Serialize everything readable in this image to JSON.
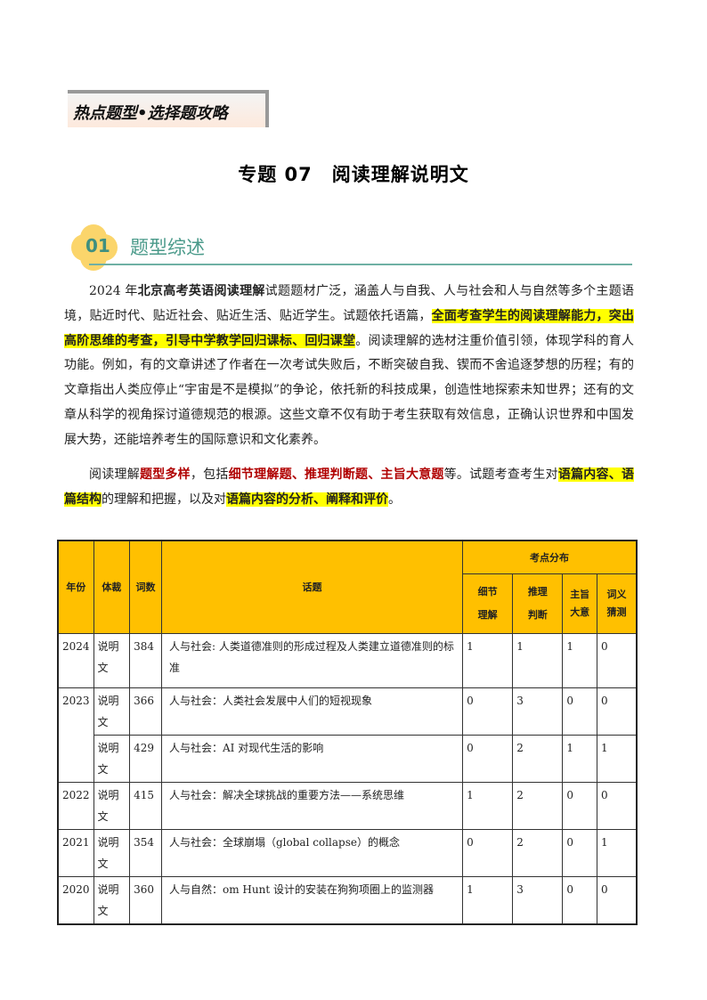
{
  "tag": "热点题型•选择题攻略",
  "title": "专题 07　阅读理解说明文",
  "section": {
    "number": "01",
    "title": "题型综述"
  },
  "paragraphs": [
    [
      [
        "",
        "2024 年"
      ],
      [
        "b",
        "北京高考英语阅读理解"
      ],
      [
        "",
        "试题题材广泛，涵盖人与自我、人与社会和人与自然等多个主题语境，贴近时代、贴近社会、贴近生活、贴近学生。试题依托语篇，"
      ],
      [
        "hl",
        "全面考查学生的阅读理解能力，突出高阶思维的考查，引导中学教学回归课标、回归课堂"
      ],
      [
        "",
        "。阅读理解的选材注重价值引领，体现学科的育人功能。例如，有的文章讲述了作者在一次考试失败后，不断突破自我、锲而不舍追逐梦想的历程；有的文章指出人类应停止“宇宙是不是模拟”的争论，依托新的科技成果，创造性地探索未知世界；还有的文章从科学的视角探讨道德规范的根源。这些文章不仅有助于考生获取有效信息，正确认识世界和中国发展大势，还能培养考生的国际意识和文化素养。"
      ]
    ],
    [
      [
        "",
        "阅读理解"
      ],
      [
        "red",
        "题型多样"
      ],
      [
        "",
        "，包括"
      ],
      [
        "red",
        "细节理解题、推理判断题、主旨大意题"
      ],
      [
        "",
        "等。试题考查考生对"
      ],
      [
        "hl",
        "语篇内容、语篇结构"
      ],
      [
        "",
        "的理解和把握，以及对"
      ],
      [
        "hl",
        "语篇内容的分析、阐释和评价"
      ],
      [
        "",
        "。"
      ]
    ]
  ],
  "table": {
    "headers": {
      "year": "年份",
      "genre": "体裁",
      "words": "词数",
      "topic": "话题",
      "group": "考点分布",
      "sub": [
        "细节\n理解",
        "推理\n判断",
        "主旨\n大意",
        "词义\n猜测"
      ]
    },
    "rows": [
      {
        "year": "2024",
        "genre": "说明文",
        "words": "384",
        "topic": "人与社会: 人类道德准则的形成过程及人类建立道德准则的标准",
        "v": [
          "1",
          "1",
          "1",
          "0"
        ]
      },
      {
        "year": "2023",
        "genre": "说明文",
        "words": "366",
        "topic": "人与社会：人类社会发展中人们的短视现象",
        "v": [
          "0",
          "3",
          "0",
          "0"
        ]
      },
      {
        "year": "",
        "genre": "说明文",
        "words": "429",
        "topic": "人与社会：AI 对现代生活的影响",
        "v": [
          "0",
          "2",
          "1",
          "1"
        ]
      },
      {
        "year": "2022",
        "genre": "说明文",
        "words": "415",
        "topic": "人与社会：解决全球挑战的重要方法——系统思维",
        "v": [
          "1",
          "2",
          "0",
          "0"
        ]
      },
      {
        "year": "2021",
        "genre": "说明文",
        "words": "354",
        "topic": "人与社会：全球崩塌（global collapse）的概念",
        "v": [
          "0",
          "2",
          "0",
          "1"
        ]
      },
      {
        "year": "2020",
        "genre": "说明文",
        "words": "360",
        "topic": "人与自然：om Hunt 设计的安装在狗狗项圈上的监测器",
        "v": [
          "1",
          "3",
          "0",
          "0"
        ]
      }
    ]
  }
}
